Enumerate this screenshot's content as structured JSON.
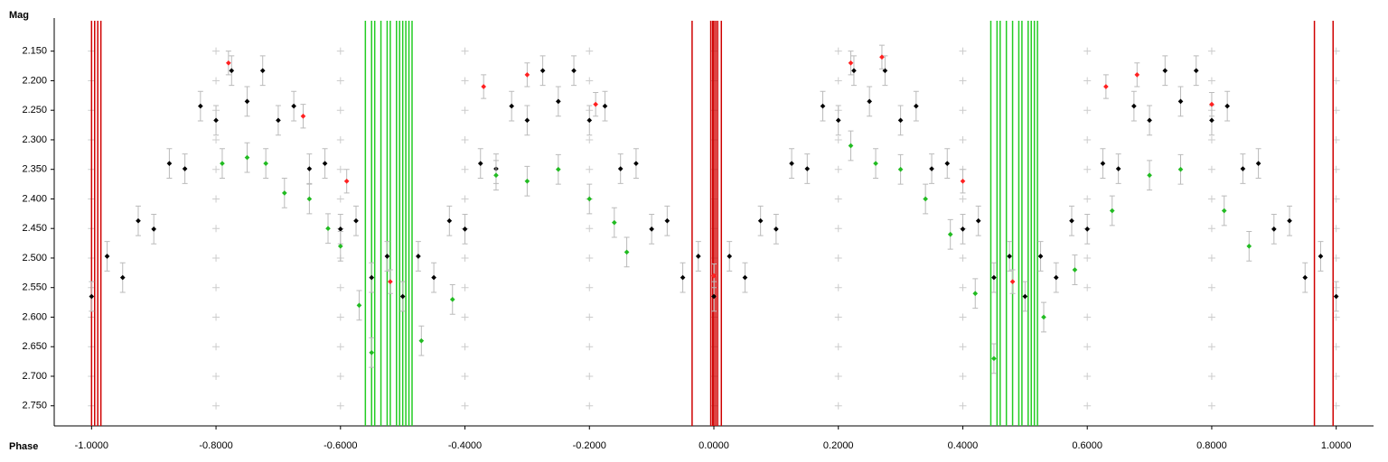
{
  "chart_data": {
    "type": "scatter",
    "x_label": "Phase",
    "y_label": "Mag",
    "xlim": [
      -1.06,
      1.06
    ],
    "ylim": [
      2.094,
      2.784
    ],
    "y_inverted": true,
    "grid": "crosses",
    "xticks": [
      {
        "value": -1.0,
        "label": "-1.0000"
      },
      {
        "value": -0.8,
        "label": "-0.8000"
      },
      {
        "value": -0.6,
        "label": "-0.6000"
      },
      {
        "value": -0.4,
        "label": "-0.4000"
      },
      {
        "value": -0.2,
        "label": "-0.2000"
      },
      {
        "value": 0,
        "label": "0.0000"
      },
      {
        "value": 0.2,
        "label": "0.2000"
      },
      {
        "value": 0.4,
        "label": "0.4000"
      },
      {
        "value": 0.6,
        "label": "0.6000"
      },
      {
        "value": 0.8,
        "label": "0.8000"
      },
      {
        "value": 1.0,
        "label": "1.0000"
      }
    ],
    "yticks": [
      {
        "value": 2.15,
        "label": "2.150"
      },
      {
        "value": 2.2,
        "label": "2.200"
      },
      {
        "value": 2.25,
        "label": "2.250"
      },
      {
        "value": 2.3,
        "label": "2.300"
      },
      {
        "value": 2.35,
        "label": "2.350"
      },
      {
        "value": 2.4,
        "label": "2.400"
      },
      {
        "value": 2.45,
        "label": "2.450"
      },
      {
        "value": 2.5,
        "label": "2.500"
      },
      {
        "value": 2.55,
        "label": "2.550"
      },
      {
        "value": 2.6,
        "label": "2.600"
      },
      {
        "value": 2.65,
        "label": "2.650"
      },
      {
        "value": 2.7,
        "label": "2.700"
      },
      {
        "value": 2.75,
        "label": "2.750"
      }
    ],
    "vlines": [
      {
        "color": "#d00000",
        "x": [
          -1.0,
          -0.995,
          -0.99,
          -0.985,
          -0.035,
          -0.005,
          -0.002,
          0.0,
          0.003,
          0.006,
          0.012,
          0.965,
          0.995
        ]
      },
      {
        "color": "#22cc22",
        "x": [
          -0.56,
          -0.55,
          -0.545,
          -0.535,
          -0.525,
          -0.52,
          -0.51,
          -0.505,
          -0.5,
          -0.495,
          -0.49,
          -0.485,
          0.445,
          0.455,
          0.46,
          0.47,
          0.48,
          0.49,
          0.495,
          0.505,
          0.51,
          0.515,
          0.52
        ]
      }
    ],
    "series": [
      {
        "color": "#000000",
        "error": 0.025,
        "x": [
          -1.0,
          -0.975,
          -0.95,
          -0.925,
          -0.9,
          -0.875,
          -0.85,
          -0.825,
          -0.8,
          -0.775,
          -0.75,
          -0.725,
          -0.7,
          -0.675,
          -0.65,
          -0.625,
          -0.6,
          -0.575,
          -0.55,
          -0.525,
          -0.5,
          -0.475,
          -0.45,
          -0.425,
          -0.4,
          -0.375,
          -0.35,
          -0.325,
          -0.3,
          -0.275,
          -0.25,
          -0.225,
          -0.2,
          -0.175,
          -0.15,
          -0.125,
          -0.1,
          -0.075,
          -0.05,
          -0.025,
          0.0,
          0.025,
          0.05,
          0.075,
          0.1,
          0.125,
          0.15,
          0.175,
          0.2,
          0.225,
          0.25,
          0.275,
          0.3,
          0.325,
          0.35,
          0.375,
          0.4,
          0.425,
          0.45,
          0.475,
          0.5,
          0.525,
          0.55,
          0.575,
          0.6,
          0.625,
          0.65,
          0.675,
          0.7,
          0.725,
          0.75,
          0.775,
          0.8,
          0.825,
          0.85,
          0.875,
          0.9,
          0.925,
          0.95,
          0.975,
          1.0
        ],
        "values": [
          2.565,
          2.497,
          2.533,
          2.437,
          2.451,
          2.34,
          2.349,
          2.243,
          2.267,
          2.183,
          2.235,
          2.183,
          2.267,
          2.243,
          2.349,
          2.34,
          2.451,
          2.437,
          2.533,
          2.497,
          2.565,
          2.497,
          2.533,
          2.437,
          2.451,
          2.34,
          2.349,
          2.243,
          2.267,
          2.183,
          2.235,
          2.183,
          2.267,
          2.243,
          2.349,
          2.34,
          2.451,
          2.437,
          2.533,
          2.497,
          2.565,
          2.497,
          2.533,
          2.437,
          2.451,
          2.34,
          2.349,
          2.243,
          2.267,
          2.183,
          2.235,
          2.183,
          2.267,
          2.243,
          2.349,
          2.34,
          2.451,
          2.437,
          2.533,
          2.497,
          2.565,
          2.497,
          2.533,
          2.437,
          2.451,
          2.34,
          2.349,
          2.243,
          2.267,
          2.183,
          2.235,
          2.183,
          2.267,
          2.243,
          2.349,
          2.34,
          2.451,
          2.437,
          2.533,
          2.497,
          2.565
        ]
      },
      {
        "color": "#ff2020",
        "error": 0.02,
        "x": [
          -0.78,
          -0.66,
          -0.59,
          -0.52,
          -0.37,
          -0.3,
          -0.19,
          0.0,
          0.22,
          0.27,
          0.4,
          0.48,
          0.63,
          0.68,
          0.8
        ],
        "values": [
          2.17,
          2.26,
          2.37,
          2.54,
          2.21,
          2.19,
          2.24,
          2.53,
          2.17,
          2.16,
          2.37,
          2.54,
          2.21,
          2.19,
          2.24
        ]
      },
      {
        "color": "#22bb22",
        "error": 0.025,
        "x": [
          -0.79,
          -0.75,
          -0.72,
          -0.69,
          -0.65,
          -0.62,
          -0.6,
          -0.57,
          -0.55,
          -0.47,
          -0.42,
          -0.35,
          -0.3,
          -0.25,
          -0.2,
          -0.16,
          -0.14,
          0.22,
          0.26,
          0.3,
          0.34,
          0.38,
          0.42,
          0.45,
          0.53,
          0.58,
          0.64,
          0.7,
          0.75,
          0.82,
          0.86
        ],
        "values": [
          2.34,
          2.33,
          2.34,
          2.39,
          2.4,
          2.45,
          2.48,
          2.58,
          2.66,
          2.64,
          2.57,
          2.36,
          2.37,
          2.35,
          2.4,
          2.44,
          2.49,
          2.31,
          2.34,
          2.35,
          2.4,
          2.46,
          2.56,
          2.67,
          2.6,
          2.52,
          2.42,
          2.36,
          2.35,
          2.42,
          2.48
        ]
      }
    ]
  }
}
